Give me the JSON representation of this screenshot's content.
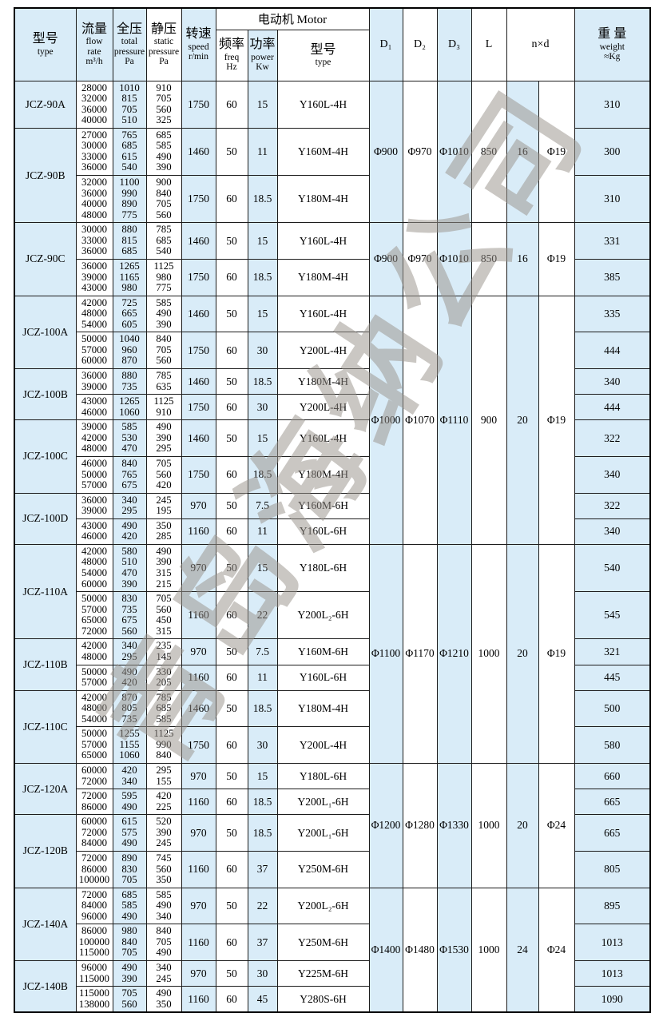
{
  "colors": {
    "cell_blue": "#d9ecf8",
    "border": "#1c1c1c",
    "watermark_gray": "#9b958e"
  },
  "watermark": "青岛海纳公司",
  "table": {
    "header": {
      "model": {
        "zh": "型号",
        "en": "type"
      },
      "flow": {
        "zh": "流量",
        "en": "flow\nrate\nm³/h"
      },
      "total": {
        "zh": "全压",
        "en": "total\npressure\nPa"
      },
      "static": {
        "zh": "静压",
        "en": "static\npressure\nPa"
      },
      "speed": {
        "zh": "转速",
        "en": "speed\nr/min"
      },
      "motor_group": "电动机 Motor",
      "freq": {
        "zh": "频率",
        "en": "freq\nHz"
      },
      "power": {
        "zh": "功率",
        "en": "power\nKw"
      },
      "motor_type": {
        "zh": "型号",
        "en": "type"
      },
      "d1": "D₁",
      "d2": "D₂",
      "d3": "D₃",
      "l": "L",
      "nxd": "n×d",
      "weight": {
        "zh": "重 量",
        "en": "weight\n≈Kg"
      }
    },
    "groups": [
      {
        "model": "JCZ-90A",
        "rows": [
          {
            "flow": [
              "28000",
              "32000",
              "36000",
              "40000"
            ],
            "total": [
              "1010",
              "815",
              "705",
              "510"
            ],
            "static": [
              "910",
              "705",
              "560",
              "325"
            ],
            "speed": "1750",
            "freq": "60",
            "power": "15",
            "motor": "Y160L-4H",
            "weight": "310"
          }
        ]
      },
      {
        "model": "JCZ-90B",
        "rows": [
          {
            "flow": [
              "27000",
              "30000",
              "33000",
              "36000"
            ],
            "total": [
              "765",
              "685",
              "615",
              "540"
            ],
            "static": [
              "685",
              "585",
              "490",
              "390"
            ],
            "speed": "1460",
            "freq": "50",
            "power": "11",
            "motor": "Y160M-4H",
            "weight": "300"
          },
          {
            "flow": [
              "32000",
              "36000",
              "40000",
              "48000"
            ],
            "total": [
              "1100",
              "990",
              "890",
              "775"
            ],
            "static": [
              "900",
              "840",
              "705",
              "560"
            ],
            "speed": "1750",
            "freq": "60",
            "power": "18.5",
            "motor": "Y180M-4H",
            "weight": "310"
          }
        ]
      },
      {
        "model": "JCZ-90C",
        "rows": [
          {
            "flow": [
              "30000",
              "33000",
              "36000"
            ],
            "total": [
              "880",
              "815",
              "685"
            ],
            "static": [
              "785",
              "685",
              "540"
            ],
            "speed": "1460",
            "freq": "50",
            "power": "15",
            "motor": "Y160L-4H",
            "weight": "331"
          },
          {
            "flow": [
              "36000",
              "39000",
              "43000"
            ],
            "total": [
              "1265",
              "1165",
              "980"
            ],
            "static": [
              "1125",
              "980",
              "775"
            ],
            "speed": "1750",
            "freq": "60",
            "power": "18.5",
            "motor": "Y180M-4H",
            "weight": "385"
          }
        ]
      },
      {
        "model": "JCZ-100A",
        "rows": [
          {
            "flow": [
              "42000",
              "48000",
              "54000"
            ],
            "total": [
              "725",
              "665",
              "605"
            ],
            "static": [
              "585",
              "490",
              "390"
            ],
            "speed": "1460",
            "freq": "50",
            "power": "15",
            "motor": "Y160L-4H",
            "weight": "335"
          },
          {
            "flow": [
              "50000",
              "57000",
              "60000"
            ],
            "total": [
              "1040",
              "960",
              "870"
            ],
            "static": [
              "840",
              "705",
              "560"
            ],
            "speed": "1750",
            "freq": "60",
            "power": "30",
            "motor": "Y200L-4H",
            "weight": "444"
          }
        ]
      },
      {
        "model": "JCZ-100B",
        "rows": [
          {
            "flow": [
              "36000",
              "39000"
            ],
            "total": [
              "880",
              "735"
            ],
            "static": [
              "785",
              "635"
            ],
            "speed": "1460",
            "freq": "50",
            "power": "18.5",
            "motor": "Y180M-4H",
            "weight": "340"
          },
          {
            "flow": [
              "43000",
              "46000"
            ],
            "total": [
              "1265",
              "1060"
            ],
            "static": [
              "1125",
              "910"
            ],
            "speed": "1750",
            "freq": "60",
            "power": "30",
            "motor": "Y200L-4H",
            "weight": "444"
          }
        ]
      },
      {
        "model": "JCZ-100C",
        "rows": [
          {
            "flow": [
              "39000",
              "42000",
              "48000"
            ],
            "total": [
              "585",
              "530",
              "470"
            ],
            "static": [
              "490",
              "390",
              "295"
            ],
            "speed": "1460",
            "freq": "50",
            "power": "15",
            "motor": "Y160L-4H",
            "weight": "322"
          },
          {
            "flow": [
              "46000",
              "50000",
              "57000"
            ],
            "total": [
              "840",
              "765",
              "675"
            ],
            "static": [
              "705",
              "560",
              "420"
            ],
            "speed": "1750",
            "freq": "60",
            "power": "18.5",
            "motor": "Y180M-4H",
            "weight": "340"
          }
        ]
      },
      {
        "model": "JCZ-100D",
        "rows": [
          {
            "flow": [
              "36000",
              "39000"
            ],
            "total": [
              "340",
              "295"
            ],
            "static": [
              "245",
              "195"
            ],
            "speed": "970",
            "freq": "50",
            "power": "7.5",
            "motor": "Y160M-6H",
            "weight": "322"
          },
          {
            "flow": [
              "43000",
              "46000"
            ],
            "total": [
              "490",
              "420"
            ],
            "static": [
              "350",
              "285"
            ],
            "speed": "1160",
            "freq": "60",
            "power": "11",
            "motor": "Y160L-6H",
            "weight": "340"
          }
        ]
      },
      {
        "model": "JCZ-110A",
        "rows": [
          {
            "flow": [
              "42000",
              "48000",
              "54000",
              "60000"
            ],
            "total": [
              "580",
              "510",
              "470",
              "390"
            ],
            "static": [
              "490",
              "390",
              "315",
              "215"
            ],
            "speed": "970",
            "freq": "50",
            "power": "15",
            "motor": "Y180L-6H",
            "weight": "540"
          },
          {
            "flow": [
              "50000",
              "57000",
              "65000",
              "72000"
            ],
            "total": [
              "830",
              "735",
              "675",
              "560"
            ],
            "static": [
              "705",
              "560",
              "450",
              "315"
            ],
            "speed": "1160",
            "freq": "60",
            "power": "22",
            "motor": "Y200L₂-6H",
            "weight": "545"
          }
        ]
      },
      {
        "model": "JCZ-110B",
        "rows": [
          {
            "flow": [
              "42000",
              "48000"
            ],
            "total": [
              "340",
              "295"
            ],
            "static": [
              "235",
              "145"
            ],
            "speed": "970",
            "freq": "50",
            "power": "7.5",
            "motor": "Y160M-6H",
            "weight": "321"
          },
          {
            "flow": [
              "50000",
              "57000"
            ],
            "total": [
              "490",
              "420"
            ],
            "static": [
              "330",
              "205"
            ],
            "speed": "1160",
            "freq": "60",
            "power": "11",
            "motor": "Y160L-6H",
            "weight": "445"
          }
        ]
      },
      {
        "model": "JCZ-110C",
        "rows": [
          {
            "flow": [
              "42000",
              "48000",
              "54000"
            ],
            "total": [
              "870",
              "805",
              "735"
            ],
            "static": [
              "785",
              "685",
              "585"
            ],
            "speed": "1460",
            "freq": "50",
            "power": "18.5",
            "motor": "Y180M-4H",
            "weight": "500"
          },
          {
            "flow": [
              "50000",
              "57000",
              "65000"
            ],
            "total": [
              "1255",
              "1155",
              "1060"
            ],
            "static": [
              "1125",
              "990",
              "840"
            ],
            "speed": "1750",
            "freq": "60",
            "power": "30",
            "motor": "Y200L-4H",
            "weight": "580"
          }
        ]
      },
      {
        "model": "JCZ-120A",
        "rows": [
          {
            "flow": [
              "60000",
              "72000"
            ],
            "total": [
              "420",
              "340"
            ],
            "static": [
              "295",
              "155"
            ],
            "speed": "970",
            "freq": "50",
            "power": "15",
            "motor": "Y180L-6H",
            "weight": "660"
          },
          {
            "flow": [
              "72000",
              "86000"
            ],
            "total": [
              "595",
              "490"
            ],
            "static": [
              "420",
              "225"
            ],
            "speed": "1160",
            "freq": "60",
            "power": "18.5",
            "motor": "Y200L₁-6H",
            "weight": "665"
          }
        ]
      },
      {
        "model": "JCZ-120B",
        "rows": [
          {
            "flow": [
              "60000",
              "72000",
              "84000"
            ],
            "total": [
              "615",
              "575",
              "490"
            ],
            "static": [
              "520",
              "390",
              "245"
            ],
            "speed": "970",
            "freq": "50",
            "power": "18.5",
            "motor": "Y200L₁-6H",
            "weight": "665"
          },
          {
            "flow": [
              "72000",
              "86000",
              "100000"
            ],
            "total": [
              "890",
              "830",
              "705"
            ],
            "static": [
              "745",
              "560",
              "350"
            ],
            "speed": "1160",
            "freq": "60",
            "power": "37",
            "motor": "Y250M-6H",
            "weight": "805"
          }
        ]
      },
      {
        "model": "JCZ-140A",
        "rows": [
          {
            "flow": [
              "72000",
              "84000",
              "96000"
            ],
            "total": [
              "685",
              "585",
              "490"
            ],
            "static": [
              "585",
              "490",
              "340"
            ],
            "speed": "970",
            "freq": "50",
            "power": "22",
            "motor": "Y200L₂-6H",
            "weight": "895"
          },
          {
            "flow": [
              "86000",
              "100000",
              "115000"
            ],
            "total": [
              "980",
              "840",
              "705"
            ],
            "static": [
              "840",
              "705",
              "490"
            ],
            "speed": "1160",
            "freq": "60",
            "power": "37",
            "motor": "Y250M-6H",
            "weight": "1013"
          }
        ]
      },
      {
        "model": "JCZ-140B",
        "rows": [
          {
            "flow": [
              "96000",
              "115000"
            ],
            "total": [
              "490",
              "390"
            ],
            "static": [
              "340",
              "245"
            ],
            "speed": "970",
            "freq": "50",
            "power": "30",
            "motor": "Y225M-6H",
            "weight": "1013"
          },
          {
            "flow": [
              "115000",
              "138000"
            ],
            "total": [
              "705",
              "560"
            ],
            "static": [
              "490",
              "350"
            ],
            "speed": "1160",
            "freq": "60",
            "power": "45",
            "motor": "Y280S-6H",
            "weight": "1090"
          }
        ]
      }
    ],
    "dim_groups": [
      {
        "span_rows": 3,
        "d1": "Φ900",
        "d2": "Φ970",
        "d3": "Φ1010",
        "l": "850",
        "n": "16",
        "d": "Φ19"
      },
      {
        "span_rows": 2,
        "d1": "Φ900",
        "d2": "Φ970",
        "d3": "Φ1010",
        "l": "850",
        "n": "16",
        "d": "Φ19"
      },
      {
        "span_rows": 8,
        "d1": "Φ1000",
        "d2": "Φ1070",
        "d3": "Φ1110",
        "l": "900",
        "n": "20",
        "d": "Φ19"
      },
      {
        "span_rows": 6,
        "d1": "Φ1100",
        "d2": "Φ1170",
        "d3": "Φ1210",
        "l": "1000",
        "n": "20",
        "d": "Φ19"
      },
      {
        "span_rows": 4,
        "d1": "Φ1200",
        "d2": "Φ1280",
        "d3": "Φ1330",
        "l": "1000",
        "n": "20",
        "d": "Φ24"
      },
      {
        "span_rows": 4,
        "d1": "Φ1400",
        "d2": "Φ1480",
        "d3": "Φ1530",
        "l": "1000",
        "n": "24",
        "d": "Φ24"
      }
    ]
  }
}
